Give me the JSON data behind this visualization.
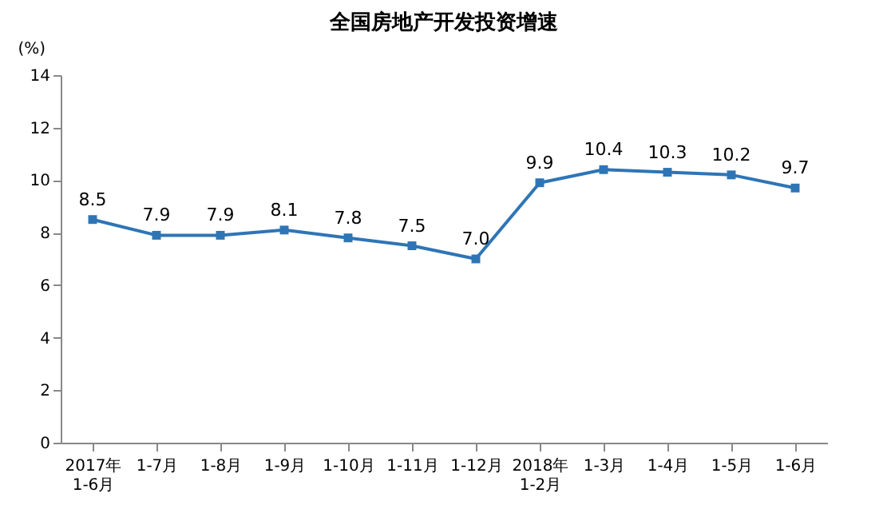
{
  "chart_data": {
    "type": "line",
    "title": "全国房地产开发投资增速",
    "ylabel": "(%)",
    "categories": [
      "2017年\n1-6月",
      "1-7月",
      "1-8月",
      "1-9月",
      "1-10月",
      "1-11月",
      "1-12月",
      "2018年\n1-2月",
      "1-3月",
      "1-4月",
      "1-5月",
      "1-6月"
    ],
    "series": [
      {
        "color": "#2e75b6",
        "values": [
          8.5,
          7.9,
          7.9,
          8.1,
          7.8,
          7.5,
          7.0,
          9.9,
          10.4,
          10.3,
          10.2,
          9.7
        ],
        "value_labels": [
          "8.5",
          "7.9",
          "7.9",
          "8.1",
          "7.8",
          "7.5",
          "7.0",
          "9.9",
          "10.4",
          "10.3",
          "10.2",
          "9.7"
        ]
      }
    ],
    "ylim": [
      0,
      14
    ],
    "yticks": [
      0,
      2,
      4,
      6,
      8,
      10,
      12,
      14
    ],
    "marker": "square",
    "line_style": "solid",
    "grid": false
  }
}
